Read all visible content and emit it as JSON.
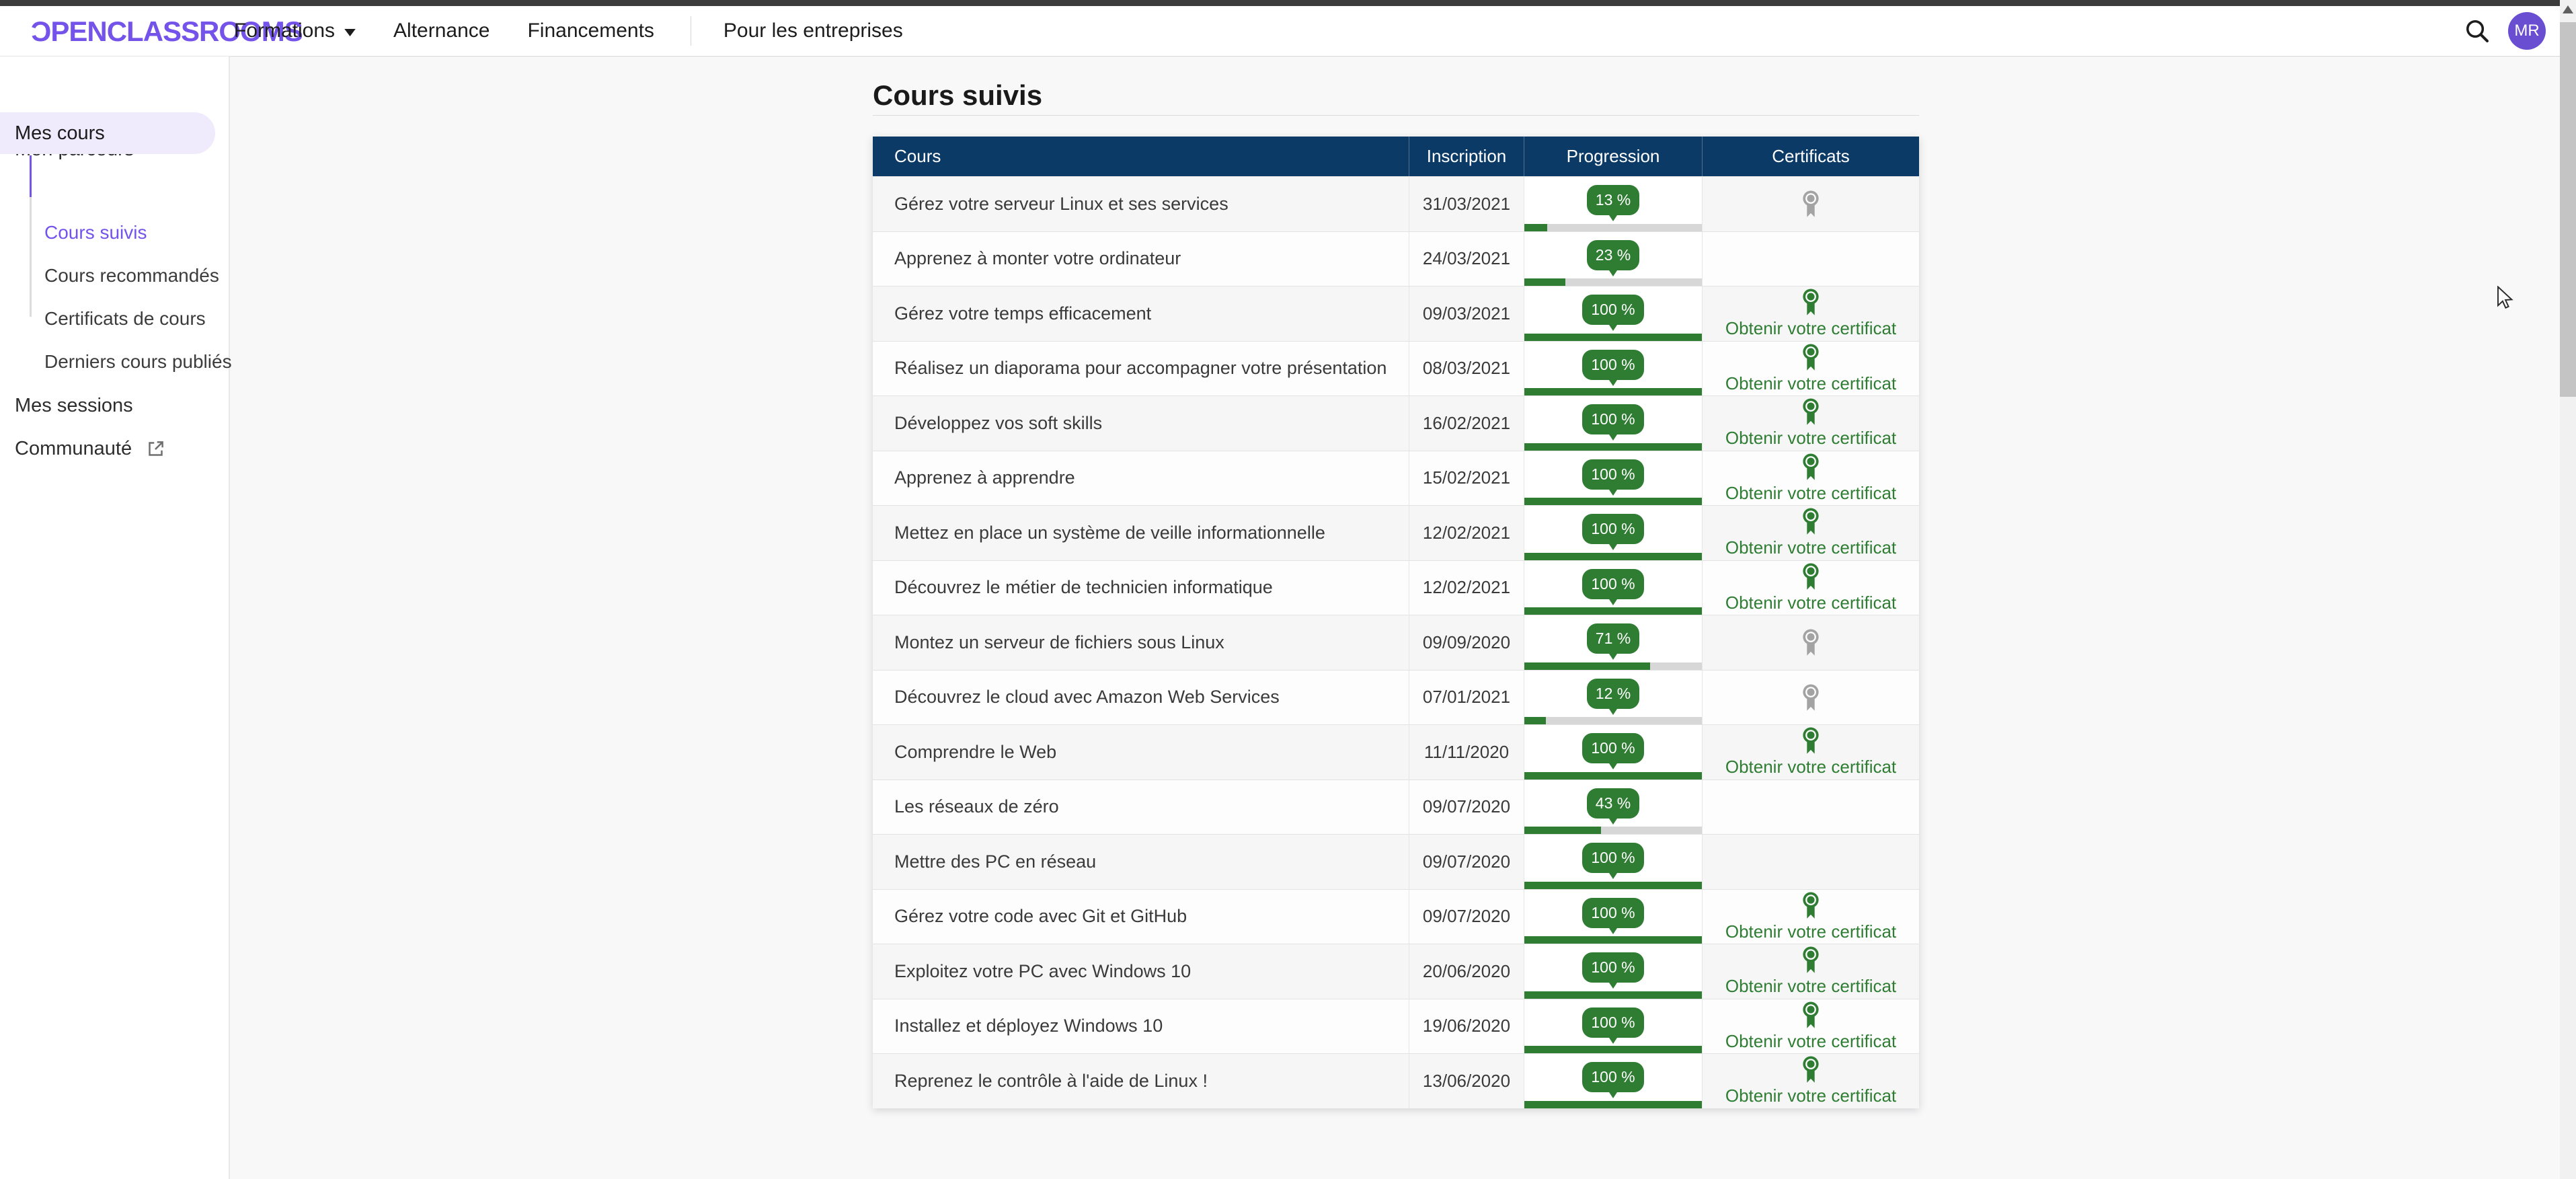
{
  "nav": {
    "logo_first": "Ɔ",
    "logo_rest": "PENCLASSROOMS",
    "items": [
      "Formations",
      "Alternance",
      "Financements"
    ],
    "enterprise_label": "Pour les entreprises",
    "avatar_initials": "MR"
  },
  "sidebar": {
    "items": [
      {
        "label": "Mon parcours"
      },
      {
        "label": "Mes cours",
        "active": true
      },
      {
        "label": "Mes sessions"
      },
      {
        "label": "Communauté",
        "external": true
      }
    ],
    "subitems": [
      {
        "label": "Cours suivis",
        "active": true
      },
      {
        "label": "Cours recommandés"
      },
      {
        "label": "Certificats de cours"
      },
      {
        "label": "Derniers cours publiés"
      }
    ]
  },
  "main": {
    "title": "Cours suivis",
    "table": {
      "headers": [
        "Cours",
        "Inscription",
        "Progression",
        "Certificats"
      ],
      "certificate_link_label": "Obtenir votre certificat",
      "rows": [
        {
          "course": "Gérez votre serveur Linux et ses services",
          "date": "31/03/2021",
          "progress": 13,
          "progress_label": "13 %",
          "certificate": "locked"
        },
        {
          "course": "Apprenez à monter votre ordinateur",
          "date": "24/03/2021",
          "progress": 23,
          "progress_label": "23 %",
          "certificate": "none"
        },
        {
          "course": "Gérez votre temps efficacement",
          "date": "09/03/2021",
          "progress": 100,
          "progress_label": "100 %",
          "certificate": "available"
        },
        {
          "course": "Réalisez un diaporama pour accompagner votre présentation",
          "date": "08/03/2021",
          "progress": 100,
          "progress_label": "100 %",
          "certificate": "available"
        },
        {
          "course": "Développez vos soft skills",
          "date": "16/02/2021",
          "progress": 100,
          "progress_label": "100 %",
          "certificate": "available"
        },
        {
          "course": "Apprenez à apprendre",
          "date": "15/02/2021",
          "progress": 100,
          "progress_label": "100 %",
          "certificate": "available"
        },
        {
          "course": "Mettez en place un système de veille informationnelle",
          "date": "12/02/2021",
          "progress": 100,
          "progress_label": "100 %",
          "certificate": "available"
        },
        {
          "course": "Découvrez le métier de technicien informatique",
          "date": "12/02/2021",
          "progress": 100,
          "progress_label": "100 %",
          "certificate": "available"
        },
        {
          "course": "Montez un serveur de fichiers sous Linux",
          "date": "09/09/2020",
          "progress": 71,
          "progress_label": "71 %",
          "certificate": "locked"
        },
        {
          "course": "Découvrez le cloud avec Amazon Web Services",
          "date": "07/01/2021",
          "progress": 12,
          "progress_label": "12 %",
          "certificate": "locked"
        },
        {
          "course": "Comprendre le Web",
          "date": "11/11/2020",
          "progress": 100,
          "progress_label": "100 %",
          "certificate": "available"
        },
        {
          "course": "Les réseaux de zéro",
          "date": "09/07/2020",
          "progress": 43,
          "progress_label": "43 %",
          "certificate": "none"
        },
        {
          "course": "Mettre des PC en réseau",
          "date": "09/07/2020",
          "progress": 100,
          "progress_label": "100 %",
          "certificate": "none"
        },
        {
          "course": "Gérez votre code avec Git et GitHub",
          "date": "09/07/2020",
          "progress": 100,
          "progress_label": "100 %",
          "certificate": "available"
        },
        {
          "course": "Exploitez votre PC avec Windows 10",
          "date": "20/06/2020",
          "progress": 100,
          "progress_label": "100 %",
          "certificate": "available"
        },
        {
          "course": "Installez et déployez Windows 10",
          "date": "19/06/2020",
          "progress": 100,
          "progress_label": "100 %",
          "certificate": "available"
        },
        {
          "course": "Reprenez le contrôle à l'aide de Linux !",
          "date": "13/06/2020",
          "progress": 100,
          "progress_label": "100 %",
          "certificate": "available"
        }
      ]
    }
  },
  "colors": {
    "accent_purple": "#7453eb",
    "header_navy": "#0b3a67",
    "progress_green": "#2e7d32",
    "locked_grey": "#a3a3a3"
  }
}
